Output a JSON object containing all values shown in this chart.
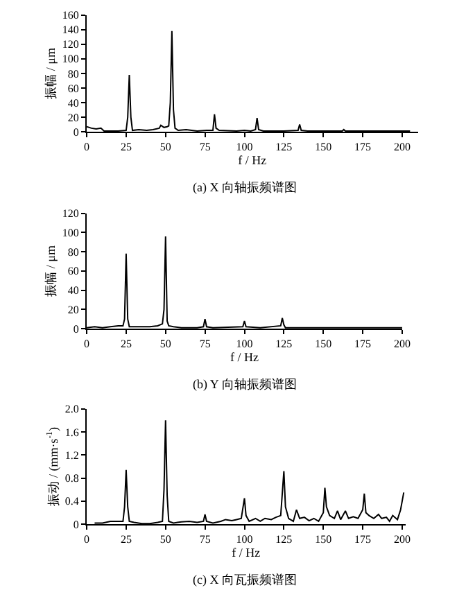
{
  "chart_data": [
    {
      "type": "line",
      "title": "(a) X 向轴振频谱图",
      "xlabel": "f / Hz",
      "ylabel": "振幅 / μm",
      "xlim": [
        0,
        210
      ],
      "xticks": [
        0,
        25,
        50,
        75,
        100,
        125,
        150,
        175,
        200
      ],
      "ylim": [
        0,
        160
      ],
      "yticks": [
        0,
        20,
        40,
        60,
        80,
        100,
        120,
        140,
        160
      ],
      "x": [
        0,
        3,
        6,
        9,
        11,
        15,
        20,
        25,
        26,
        27,
        28,
        29,
        33,
        38,
        42,
        46,
        47,
        49,
        51,
        52,
        53,
        54,
        55,
        56,
        58,
        63,
        70,
        76,
        80,
        81,
        82,
        84,
        95,
        100,
        104,
        107,
        108,
        109,
        112,
        125,
        134,
        135,
        136,
        140,
        150,
        162,
        163,
        164,
        175,
        190,
        200,
        205
      ],
      "series": [
        {
          "color": "#000000",
          "values": [
            7,
            5,
            4,
            5,
            1,
            1,
            1,
            2,
            20,
            78,
            20,
            2,
            3,
            2,
            3,
            5,
            9,
            6,
            7,
            8,
            40,
            138,
            30,
            5,
            2,
            3,
            1,
            2,
            2,
            24,
            5,
            2,
            1,
            2,
            1,
            3,
            19,
            3,
            1,
            1,
            2,
            10,
            2,
            1,
            1,
            1,
            3,
            1,
            1,
            1,
            1,
            1
          ]
        }
      ]
    },
    {
      "type": "line",
      "title": "(b) Y 向轴振频谱图",
      "xlabel": "f / Hz",
      "ylabel": "振幅 / μm",
      "xlim": [
        0,
        200
      ],
      "xticks": [
        0,
        25,
        50,
        75,
        100,
        125,
        150,
        175,
        200
      ],
      "ylim": [
        0,
        120
      ],
      "yticks": [
        0,
        20,
        40,
        60,
        80,
        100,
        120
      ],
      "x": [
        0,
        5,
        10,
        15,
        20,
        23,
        24,
        25,
        26,
        27,
        30,
        40,
        45,
        48,
        49,
        50,
        51,
        52,
        55,
        60,
        70,
        74,
        75,
        76,
        80,
        99,
        100,
        101,
        110,
        123,
        124,
        125,
        126,
        140,
        160,
        180,
        200
      ],
      "series": [
        {
          "color": "#000000",
          "values": [
            1,
            2,
            1,
            2,
            3,
            3,
            10,
            78,
            10,
            2,
            2,
            2,
            3,
            5,
            20,
            96,
            8,
            3,
            2,
            1,
            1,
            2,
            10,
            2,
            1,
            2,
            8,
            2,
            1,
            3,
            11,
            4,
            1,
            1,
            1,
            1,
            1
          ]
        }
      ]
    },
    {
      "type": "line",
      "title": "(c) X 向瓦振频谱图",
      "xlabel": "f / Hz",
      "ylabel": "振动 / (mm·s$^{-1}$)",
      "xlim": [
        0,
        202
      ],
      "xticks": [
        0,
        25,
        50,
        75,
        100,
        125,
        150,
        175,
        200
      ],
      "ylim": [
        0,
        2.0
      ],
      "yticks": [
        0,
        {
          "value": 0.4,
          "label": "0.4"
        },
        {
          "value": 0.8,
          "label": "0.8"
        },
        {
          "value": 1.2,
          "label": "1.2"
        },
        {
          "value": 1.6,
          "label": "1.6"
        },
        {
          "value": 2.0,
          "label": "2.0"
        }
      ],
      "x": [
        5,
        10,
        15,
        20,
        23,
        24,
        25,
        26,
        27,
        30,
        35,
        40,
        45,
        48,
        49,
        50,
        51,
        52,
        55,
        60,
        65,
        70,
        74,
        75,
        76,
        80,
        85,
        88,
        92,
        95,
        98,
        100,
        101,
        103,
        107,
        110,
        113,
        117,
        120,
        123,
        125,
        126,
        128,
        131,
        133,
        135,
        138,
        141,
        144,
        147,
        150,
        151,
        152,
        154,
        157,
        159,
        161,
        164,
        166,
        169,
        172,
        175,
        176,
        177,
        179,
        182,
        185,
        187,
        190,
        192,
        194,
        197,
        199,
        201
      ],
      "series": [
        {
          "color": "#000000",
          "values": [
            0.02,
            0.02,
            0.05,
            0.05,
            0.05,
            0.3,
            0.94,
            0.3,
            0.05,
            0.03,
            0.01,
            0.01,
            0.03,
            0.05,
            0.6,
            1.8,
            0.5,
            0.05,
            0.02,
            0.04,
            0.05,
            0.03,
            0.05,
            0.17,
            0.05,
            0.02,
            0.05,
            0.08,
            0.06,
            0.08,
            0.1,
            0.45,
            0.15,
            0.05,
            0.1,
            0.05,
            0.1,
            0.08,
            0.12,
            0.15,
            0.92,
            0.3,
            0.1,
            0.05,
            0.25,
            0.1,
            0.12,
            0.06,
            0.1,
            0.05,
            0.2,
            0.63,
            0.3,
            0.15,
            0.1,
            0.23,
            0.08,
            0.23,
            0.1,
            0.13,
            0.1,
            0.25,
            0.53,
            0.2,
            0.15,
            0.1,
            0.17,
            0.1,
            0.12,
            0.05,
            0.15,
            0.08,
            0.25,
            0.55
          ]
        }
      ]
    }
  ]
}
